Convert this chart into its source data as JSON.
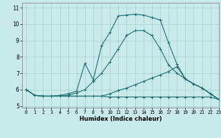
{
  "xlabel": "Humidex (Indice chaleur)",
  "background_color": "#c8eaea",
  "grid_color": "#a8cccc",
  "line_color": "#1a7070",
  "xlim": [
    -0.5,
    23
  ],
  "ylim": [
    4.9,
    11.3
  ],
  "yticks": [
    5,
    6,
    7,
    8,
    9,
    10,
    11
  ],
  "xticks": [
    0,
    1,
    2,
    3,
    4,
    5,
    6,
    7,
    8,
    9,
    10,
    11,
    12,
    13,
    14,
    15,
    16,
    17,
    18,
    19,
    20,
    21,
    22,
    23
  ],
  "series": [
    {
      "x": [
        0,
        1,
        2,
        3,
        4,
        5,
        6,
        7,
        8,
        9,
        10,
        11,
        12,
        13,
        14,
        15,
        16,
        17,
        18,
        19,
        20,
        21,
        22,
        23
      ],
      "y": [
        6.0,
        5.65,
        5.6,
        5.6,
        5.6,
        5.6,
        5.6,
        5.6,
        5.6,
        5.6,
        5.55,
        5.55,
        5.55,
        5.55,
        5.55,
        5.55,
        5.55,
        5.55,
        5.55,
        5.55,
        5.55,
        5.55,
        5.55,
        5.4
      ]
    },
    {
      "x": [
        0,
        1,
        2,
        3,
        4,
        5,
        6,
        7,
        8,
        9,
        10,
        11,
        12,
        13,
        14,
        15,
        16,
        17,
        18,
        19,
        20,
        21,
        22,
        23
      ],
      "y": [
        6.0,
        5.65,
        5.6,
        5.6,
        5.6,
        5.6,
        5.6,
        5.6,
        5.6,
        5.6,
        5.75,
        5.95,
        6.1,
        6.3,
        6.5,
        6.7,
        6.9,
        7.1,
        7.4,
        6.65,
        6.35,
        6.1,
        5.75,
        5.4
      ]
    },
    {
      "x": [
        0,
        1,
        2,
        3,
        4,
        5,
        6,
        7,
        8,
        9,
        10,
        11,
        12,
        13,
        14,
        15,
        16,
        17,
        18,
        19,
        20,
        21,
        22,
        23
      ],
      "y": [
        6.0,
        5.65,
        5.6,
        5.6,
        5.6,
        5.65,
        5.8,
        6.0,
        6.5,
        7.0,
        7.7,
        8.5,
        9.3,
        9.6,
        9.6,
        9.3,
        8.5,
        7.5,
        7.0,
        6.65,
        6.35,
        6.1,
        5.75,
        5.4
      ]
    },
    {
      "x": [
        0,
        1,
        2,
        3,
        4,
        5,
        6,
        7,
        8,
        9,
        10,
        11,
        12,
        13,
        14,
        15,
        16,
        17,
        18,
        19,
        20,
        21,
        22,
        23
      ],
      "y": [
        6.0,
        5.65,
        5.6,
        5.6,
        5.65,
        5.75,
        5.9,
        7.6,
        6.6,
        8.7,
        9.5,
        10.5,
        10.55,
        10.6,
        10.55,
        10.4,
        10.25,
        8.85,
        7.55,
        6.65,
        6.35,
        6.1,
        5.75,
        5.4
      ]
    }
  ]
}
